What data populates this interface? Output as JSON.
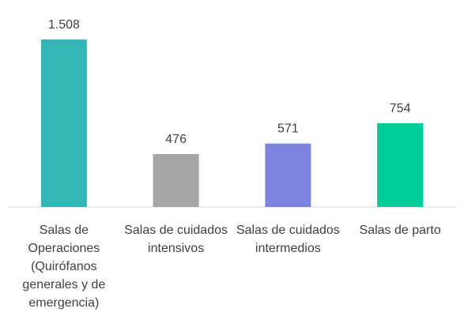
{
  "chart_data": {
    "type": "bar",
    "categories": [
      "Salas de Operaciones (Quirófanos generales y de emergencia)",
      "Salas de cuidados intensivos",
      "Salas de cuidados intermedios",
      "Salas de parto"
    ],
    "values": [
      1508,
      476,
      571,
      754
    ],
    "value_labels": [
      "1.508",
      "476",
      "571",
      "754"
    ],
    "colors": [
      "#33b6b6",
      "#a6a6a6",
      "#7b83de",
      "#00cc99"
    ]
  }
}
